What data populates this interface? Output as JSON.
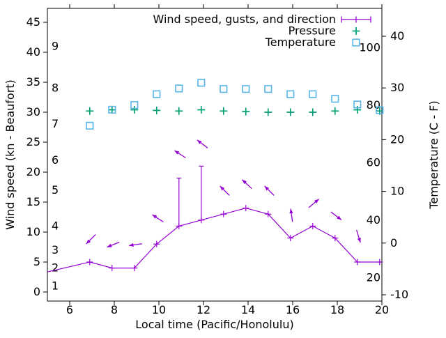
{
  "figure": {
    "background": "#ffffff",
    "axis_color": "#000000"
  },
  "chart_data": {
    "type": "line",
    "title": "",
    "xlabel": "Local time (Pacific/Honolulu)",
    "ylabel_left": "Wind speed (kn - Beaufort)",
    "ylabel_right": "Temperature (C - F)",
    "xlim": [
      5,
      20
    ],
    "x_ticks": [
      6,
      8,
      10,
      12,
      14,
      16,
      18,
      20
    ],
    "left_axis": {
      "ylim_kn": [
        -1.5,
        47.3
      ],
      "ticks_kn": [
        0,
        5,
        10,
        15,
        20,
        25,
        30,
        35,
        40,
        45
      ],
      "beaufort_scale_labels": [
        {
          "label": "1",
          "kn": 1
        },
        {
          "label": "2",
          "kn": 4
        },
        {
          "label": "3",
          "kn": 7
        },
        {
          "label": "4",
          "kn": 11
        },
        {
          "label": "5",
          "kn": 17
        },
        {
          "label": "6",
          "kn": 22
        },
        {
          "label": "7",
          "kn": 28
        },
        {
          "label": "8",
          "kn": 34
        },
        {
          "label": "9",
          "kn": 41
        }
      ]
    },
    "right_axis": {
      "ylim_c": [
        -11.2,
        45.4
      ],
      "ticks_c": [
        -10,
        0,
        10,
        20,
        30,
        40
      ],
      "fahrenheit_scale_labels": [
        {
          "label": "20",
          "c": -6.67
        },
        {
          "label": "40",
          "c": 4.44
        },
        {
          "label": "60",
          "c": 15.56
        },
        {
          "label": "80",
          "c": 26.67
        },
        {
          "label": "100",
          "c": 37.78
        }
      ]
    },
    "x_hours": [
      6.9,
      7.9,
      8.9,
      9.9,
      10.9,
      11.9,
      12.9,
      13.9,
      14.9,
      15.9,
      16.9,
      17.9,
      18.9,
      19.9
    ],
    "series": [
      {
        "name": "Wind speed, gusts, and direction",
        "type": "lines+points+gustbars+vectors",
        "color": "#9400d3",
        "speed_kn": [
          5,
          4,
          4,
          8,
          11,
          12,
          13,
          14,
          13,
          9,
          11,
          9,
          5,
          5
        ],
        "gust_kn": [
          5,
          4,
          4,
          8,
          19,
          21,
          13,
          14,
          13,
          9,
          11,
          9,
          5,
          5
        ],
        "lead_in_point": {
          "hour": 5.0,
          "kn": 3.35
        },
        "trail_out_point": {
          "hour": 20.0,
          "kn": 5
        },
        "direction_arrows": [
          {
            "hour": 6.95,
            "kn": 8.8,
            "angle_deg": 225
          },
          {
            "hour": 7.95,
            "kn": 7.9,
            "angle_deg": 248
          },
          {
            "hour": 8.95,
            "kn": 7.9,
            "angle_deg": 262
          },
          {
            "hour": 9.95,
            "kn": 12.3,
            "angle_deg": 303
          },
          {
            "hour": 10.95,
            "kn": 23.0,
            "angle_deg": 303
          },
          {
            "hour": 11.95,
            "kn": 24.7,
            "angle_deg": 307
          },
          {
            "hour": 12.95,
            "kn": 16.9,
            "angle_deg": 315
          },
          {
            "hour": 13.95,
            "kn": 18.0,
            "angle_deg": 313
          },
          {
            "hour": 14.95,
            "kn": 16.9,
            "angle_deg": 315
          },
          {
            "hour": 15.95,
            "kn": 12.8,
            "angle_deg": 352
          },
          {
            "hour": 16.95,
            "kn": 14.8,
            "angle_deg": 50
          },
          {
            "hour": 17.95,
            "kn": 12.7,
            "angle_deg": 127
          },
          {
            "hour": 18.95,
            "kn": 9.3,
            "angle_deg": 163
          }
        ]
      },
      {
        "name": "Pressure",
        "type": "points",
        "marker": "plus",
        "color": "#009e73",
        "values_plotted_on_left_axis": [
          30.2,
          30.4,
          30.4,
          30.3,
          30.2,
          30.4,
          30.2,
          30.1,
          30.0,
          30.0,
          30.0,
          30.2,
          30.4,
          30.2
        ]
      },
      {
        "name": "Temperature",
        "type": "points",
        "marker": "open-square",
        "color": "#56b4e9",
        "values_c": [
          22.7,
          25.8,
          26.7,
          28.8,
          29.9,
          31.0,
          29.8,
          29.8,
          29.8,
          28.8,
          28.8,
          27.9,
          26.8,
          25.7
        ]
      }
    ],
    "legend": {
      "position": "top-right-inside",
      "entries": [
        "Wind speed, gusts, and direction",
        "Pressure",
        "Temperature"
      ]
    }
  }
}
